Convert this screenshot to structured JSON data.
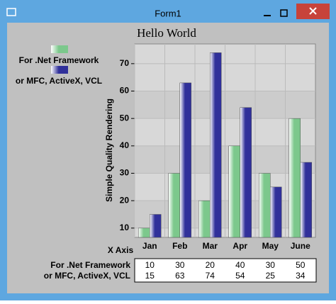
{
  "window": {
    "title": "Form1"
  },
  "chart_data": {
    "type": "bar",
    "title": "Hello World",
    "x_label": "X Axis",
    "y_label": "Simple Quality Rendering",
    "categories": [
      "Jan",
      "Feb",
      "Mar",
      "Apr",
      "May",
      "June"
    ],
    "series": [
      {
        "name": "For .Net Framework",
        "color": "#7cc88c",
        "values": [
          10,
          30,
          20,
          40,
          30,
          50
        ]
      },
      {
        "name": "or MFC, ActiveX, VCL",
        "color": "#30309a",
        "values": [
          15,
          63,
          74,
          54,
          25,
          34
        ]
      }
    ],
    "ylim": [
      6.6,
      77.2
    ],
    "yticks": [
      10,
      20,
      30,
      40,
      50,
      60,
      70
    ],
    "grid": true,
    "legend": "left"
  }
}
